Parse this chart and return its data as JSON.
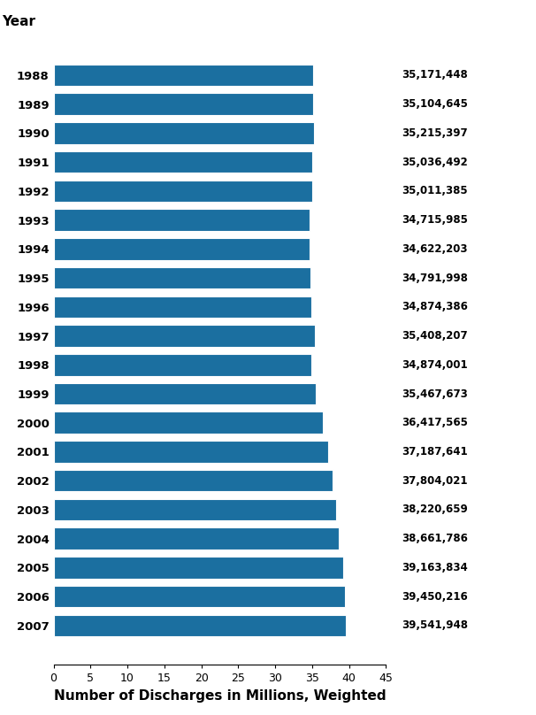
{
  "years": [
    1988,
    1989,
    1990,
    1991,
    1992,
    1993,
    1994,
    1995,
    1996,
    1997,
    1998,
    1999,
    2000,
    2001,
    2002,
    2003,
    2004,
    2005,
    2006,
    2007
  ],
  "values_millions": [
    35.171448,
    35.104645,
    35.215397,
    35.036492,
    35.011385,
    34.715985,
    34.622203,
    34.791998,
    34.874386,
    35.408207,
    34.874001,
    35.467673,
    36.417565,
    37.187641,
    37.804021,
    38.220659,
    38.661786,
    39.163834,
    39.450216,
    39.541948
  ],
  "labels": [
    "35,171,448",
    "35,104,645",
    "35,215,397",
    "35,036,492",
    "35,011,385",
    "34,715,985",
    "34,622,203",
    "34,791,998",
    "34,874,386",
    "35,408,207",
    "34,874,001",
    "35,467,673",
    "36,417,565",
    "37,187,641",
    "37,804,021",
    "38,220,659",
    "38,661,786",
    "39,163,834",
    "39,450,216",
    "39,541,948"
  ],
  "bar_color": "#1b6fa0",
  "title_ylabel": "Year",
  "xlabel": "Number of Discharges in Millions, Weighted",
  "xlim": [
    0,
    45
  ],
  "xticks": [
    0,
    5,
    10,
    15,
    20,
    25,
    30,
    35,
    40,
    45
  ],
  "background_color": "#ffffff",
  "bar_height": 0.75,
  "label_fontsize": 8.5,
  "axis_label_fontsize": 11,
  "tick_fontsize": 9,
  "year_label_fontsize": 9.5
}
